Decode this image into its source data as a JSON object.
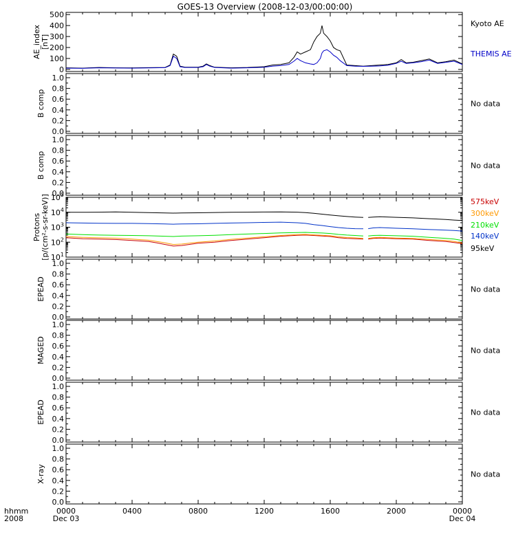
{
  "title": "GOES-13 Overview (2008-12-03/00:00:00)",
  "time_axis": {
    "corner_top": "hhmm",
    "corner_bottom": "2008",
    "ticks": [
      {
        "hours": 0,
        "label": "0000",
        "sub": "Dec 03"
      },
      {
        "hours": 4,
        "label": "0400",
        "sub": ""
      },
      {
        "hours": 8,
        "label": "0800",
        "sub": ""
      },
      {
        "hours": 12,
        "label": "1200",
        "sub": ""
      },
      {
        "hours": 16,
        "label": "1600",
        "sub": ""
      },
      {
        "hours": 20,
        "label": "2000",
        "sub": ""
      },
      {
        "hours": 24,
        "label": "0000",
        "sub": "Dec 04"
      }
    ]
  },
  "no_data_label": "No data",
  "colors": {
    "kyoto": "#000000",
    "themis": "#0000c8",
    "p575": "#c80000",
    "p300": "#ff9900",
    "p210": "#00e000",
    "p140": "#0032c8",
    "p95": "#000000"
  },
  "chart_data": [
    {
      "type": "line",
      "panel": "ae",
      "ylabel_lines": [
        "AE_index",
        "[nT]"
      ],
      "ylim": [
        0,
        520
      ],
      "yticks": [
        "0",
        "100",
        "200",
        "300",
        "400",
        "500"
      ],
      "x_units": "hours since 2008-12-03 00:00 UT",
      "series": [
        {
          "name": "Kyoto AE",
          "color_key": "kyoto",
          "x": [
            0,
            1,
            2,
            3,
            4,
            5,
            6,
            6.3,
            6.5,
            6.7,
            6.9,
            7.2,
            8,
            8.3,
            8.5,
            8.7,
            9,
            10,
            11,
            12,
            12.5,
            13,
            13.5,
            13.8,
            14,
            14.2,
            14.5,
            14.8,
            15,
            15.2,
            15.4,
            15.5,
            15.6,
            15.8,
            16,
            16.2,
            16.4,
            16.6,
            17,
            17.5,
            18,
            18.5,
            19,
            19.5,
            20,
            20.3,
            20.6,
            21,
            21.5,
            22,
            22.5,
            23,
            23.5,
            24
          ],
          "y": [
            15,
            12,
            18,
            15,
            14,
            16,
            18,
            40,
            140,
            120,
            30,
            20,
            20,
            30,
            50,
            35,
            20,
            15,
            18,
            25,
            40,
            45,
            60,
            110,
            160,
            140,
            160,
            180,
            250,
            300,
            330,
            400,
            330,
            300,
            260,
            200,
            180,
            170,
            40,
            35,
            30,
            35,
            40,
            45,
            60,
            90,
            60,
            65,
            80,
            95,
            60,
            70,
            85,
            50
          ]
        },
        {
          "name": "THEMIS AE",
          "color_key": "themis",
          "x": [
            0,
            1,
            2,
            3,
            4,
            5,
            6,
            6.3,
            6.5,
            6.7,
            6.9,
            7.2,
            8,
            8.3,
            8.5,
            8.7,
            9,
            10,
            11,
            12,
            12.5,
            13,
            13.5,
            13.8,
            14,
            14.2,
            14.5,
            14.8,
            15,
            15.2,
            15.4,
            15.5,
            15.6,
            15.8,
            16,
            16.2,
            16.4,
            16.6,
            17,
            17.5,
            18,
            18.5,
            19,
            19.5,
            20,
            20.3,
            20.6,
            21,
            21.5,
            22,
            22.5,
            23,
            23.5,
            24
          ],
          "y": [
            12,
            10,
            15,
            13,
            12,
            14,
            16,
            35,
            120,
            100,
            25,
            18,
            18,
            25,
            45,
            30,
            18,
            12,
            15,
            20,
            30,
            35,
            45,
            75,
            100,
            80,
            60,
            50,
            45,
            60,
            100,
            150,
            170,
            180,
            160,
            130,
            110,
            80,
            35,
            30,
            28,
            30,
            32,
            38,
            55,
            75,
            55,
            60,
            70,
            85,
            55,
            65,
            75,
            45
          ]
        }
      ]
    },
    {
      "type": "line",
      "panel": "protons",
      "ylabel_lines": [
        "Protons",
        "[p/(cm²-s-sr-keV)]"
      ],
      "log_scale": true,
      "ylim": [
        10,
        100000
      ],
      "ytick_exponents": [
        1,
        2,
        3,
        4,
        5
      ],
      "x": [
        0,
        1,
        2,
        3,
        4,
        5,
        5.5,
        6,
        6.5,
        7,
        8,
        9,
        10,
        11,
        12,
        13,
        14,
        14.5,
        15,
        15.5,
        16,
        16.5,
        17,
        17.5,
        18,
        18.3,
        18.6,
        19,
        20,
        21,
        22,
        23,
        23.5,
        24
      ],
      "series": [
        {
          "name": "575keV",
          "color_key": "p575",
          "y": [
            200,
            170,
            160,
            150,
            130,
            110,
            90,
            70,
            55,
            60,
            85,
            100,
            130,
            160,
            200,
            250,
            290,
            300,
            280,
            260,
            240,
            200,
            180,
            170,
            160,
            160,
            180,
            190,
            170,
            160,
            130,
            110,
            95,
            80
          ]
        },
        {
          "name": "300keV",
          "color_key": "p300",
          "y": [
            240,
            210,
            195,
            185,
            160,
            135,
            110,
            90,
            70,
            75,
            100,
            120,
            155,
            190,
            230,
            280,
            320,
            330,
            310,
            290,
            270,
            230,
            205,
            195,
            180,
            180,
            200,
            210,
            190,
            180,
            150,
            130,
            110,
            90
          ]
        },
        {
          "name": "210keV",
          "color_key": "p210",
          "y": [
            350,
            320,
            300,
            290,
            280,
            270,
            260,
            250,
            240,
            255,
            270,
            290,
            320,
            350,
            380,
            420,
            440,
            450,
            430,
            410,
            380,
            330,
            300,
            280,
            260,
            260,
            280,
            290,
            270,
            250,
            210,
            180,
            160,
            130
          ]
        },
        {
          "name": "140keV",
          "color_key": "p140",
          "y": [
            2000,
            1900,
            1850,
            1800,
            1800,
            1750,
            1700,
            1650,
            1600,
            1650,
            1700,
            1800,
            1900,
            2000,
            2100,
            2200,
            2000,
            1800,
            1500,
            1300,
            1100,
            950,
            850,
            800,
            780,
            800,
            900,
            950,
            850,
            780,
            700,
            640,
            600,
            550
          ]
        },
        {
          "name": "95keV",
          "color_key": "p95",
          "y": [
            10000,
            10000,
            10200,
            10500,
            10000,
            9500,
            9200,
            9000,
            8800,
            9000,
            9200,
            9600,
            10000,
            10200,
            10400,
            10600,
            10200,
            9500,
            8500,
            7500,
            6500,
            5800,
            5200,
            4800,
            4500,
            4500,
            4800,
            5000,
            4600,
            4200,
            3700,
            3300,
            3000,
            2800
          ]
        }
      ]
    }
  ],
  "panels": [
    {
      "id": "ae",
      "ylabel": "",
      "legend": [
        {
          "text": "Kyoto AE",
          "color_key": "kyoto"
        },
        {
          "text": "THEMIS AE",
          "color_key": "themis"
        }
      ]
    },
    {
      "id": "bcomp1",
      "ylabel": "B comp",
      "yticks": [
        "0.0",
        "0.2",
        "0.4",
        "0.6",
        "0.8",
        "1.0"
      ],
      "no_data": true
    },
    {
      "id": "bcomp2",
      "ylabel": "B comp",
      "yticks": [
        "0.0",
        "0.2",
        "0.4",
        "0.6",
        "0.8",
        "1.0"
      ],
      "no_data": true
    },
    {
      "id": "protons",
      "ylabel": "",
      "legend": [
        {
          "text": "575keV",
          "color_key": "p575"
        },
        {
          "text": "300keV",
          "color_key": "p300"
        },
        {
          "text": "210keV",
          "color_key": "p210"
        },
        {
          "text": "140keV",
          "color_key": "p140"
        },
        {
          "text": "95keV",
          "color_key": "p95"
        }
      ]
    },
    {
      "id": "epead1",
      "ylabel": "EPEAD",
      "yticks": [
        "0.0",
        "0.2",
        "0.4",
        "0.6",
        "0.8",
        "1.0"
      ],
      "no_data": true
    },
    {
      "id": "maged",
      "ylabel": "MAGED",
      "yticks": [
        "0.0",
        "0.2",
        "0.4",
        "0.6",
        "0.8",
        "1.0"
      ],
      "no_data": true
    },
    {
      "id": "epead2",
      "ylabel": "EPEAD",
      "yticks": [
        "0.0",
        "0.2",
        "0.4",
        "0.6",
        "0.8",
        "1.0"
      ],
      "no_data": true
    },
    {
      "id": "xray",
      "ylabel": "X-ray",
      "yticks": [
        "0.0",
        "0.2",
        "0.4",
        "0.6",
        "0.8",
        "1.0"
      ],
      "no_data": true
    }
  ]
}
